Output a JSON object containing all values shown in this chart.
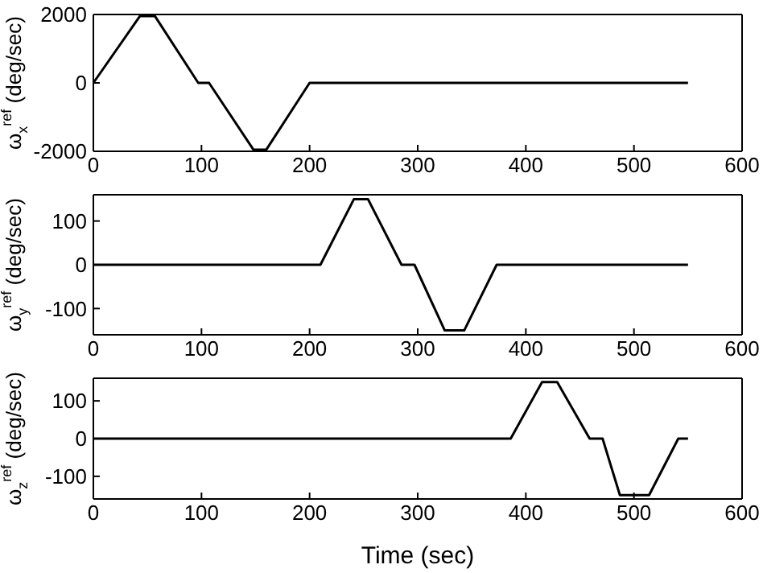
{
  "chart_data": [
    {
      "type": "line",
      "ylabel": "ω$_{x}$$^{ref}$ (deg/sec)",
      "xlim": [
        0,
        600
      ],
      "xticks": [
        0,
        100,
        200,
        300,
        400,
        500,
        600
      ],
      "ylim": [
        -2000,
        2000
      ],
      "yticks": [
        -2000,
        0,
        2000
      ],
      "marker": "none",
      "line_style": "solid",
      "series": [
        {
          "color": "#000000",
          "x": [
            0,
            43,
            57,
            97,
            107,
            148,
            160,
            200,
            550
          ],
          "values": [
            0,
            1950,
            1950,
            0,
            0,
            -1950,
            -1950,
            0,
            0
          ]
        }
      ]
    },
    {
      "type": "line",
      "ylabel": "ω$_{y}$$^{ref}$ (deg/sec)",
      "xlim": [
        0,
        600
      ],
      "xticks": [
        0,
        100,
        200,
        300,
        400,
        500,
        600
      ],
      "ylim": [
        -160,
        160
      ],
      "yticks": [
        -100,
        0,
        100
      ],
      "marker": "none",
      "line_style": "solid",
      "series": [
        {
          "color": "#000000",
          "x": [
            0,
            210,
            241,
            254,
            285,
            297,
            325,
            343,
            373,
            550
          ],
          "values": [
            0,
            0,
            150,
            150,
            0,
            0,
            -150,
            -150,
            0,
            0
          ]
        }
      ]
    },
    {
      "type": "line",
      "xlabel": "Time (sec)",
      "ylabel": "ω$_{z}$$^{ref}$ (deg/sec)",
      "xlim": [
        0,
        600
      ],
      "xticks": [
        0,
        100,
        200,
        300,
        400,
        500,
        600
      ],
      "ylim": [
        -160,
        160
      ],
      "yticks": [
        -100,
        0,
        100
      ],
      "marker": "none",
      "line_style": "solid",
      "series": [
        {
          "color": "#000000",
          "x": [
            0,
            386,
            415,
            429,
            459,
            471,
            487,
            514,
            541,
            550
          ],
          "values": [
            0,
            0,
            150,
            150,
            0,
            0,
            -150,
            -150,
            0,
            0
          ]
        }
      ]
    }
  ]
}
